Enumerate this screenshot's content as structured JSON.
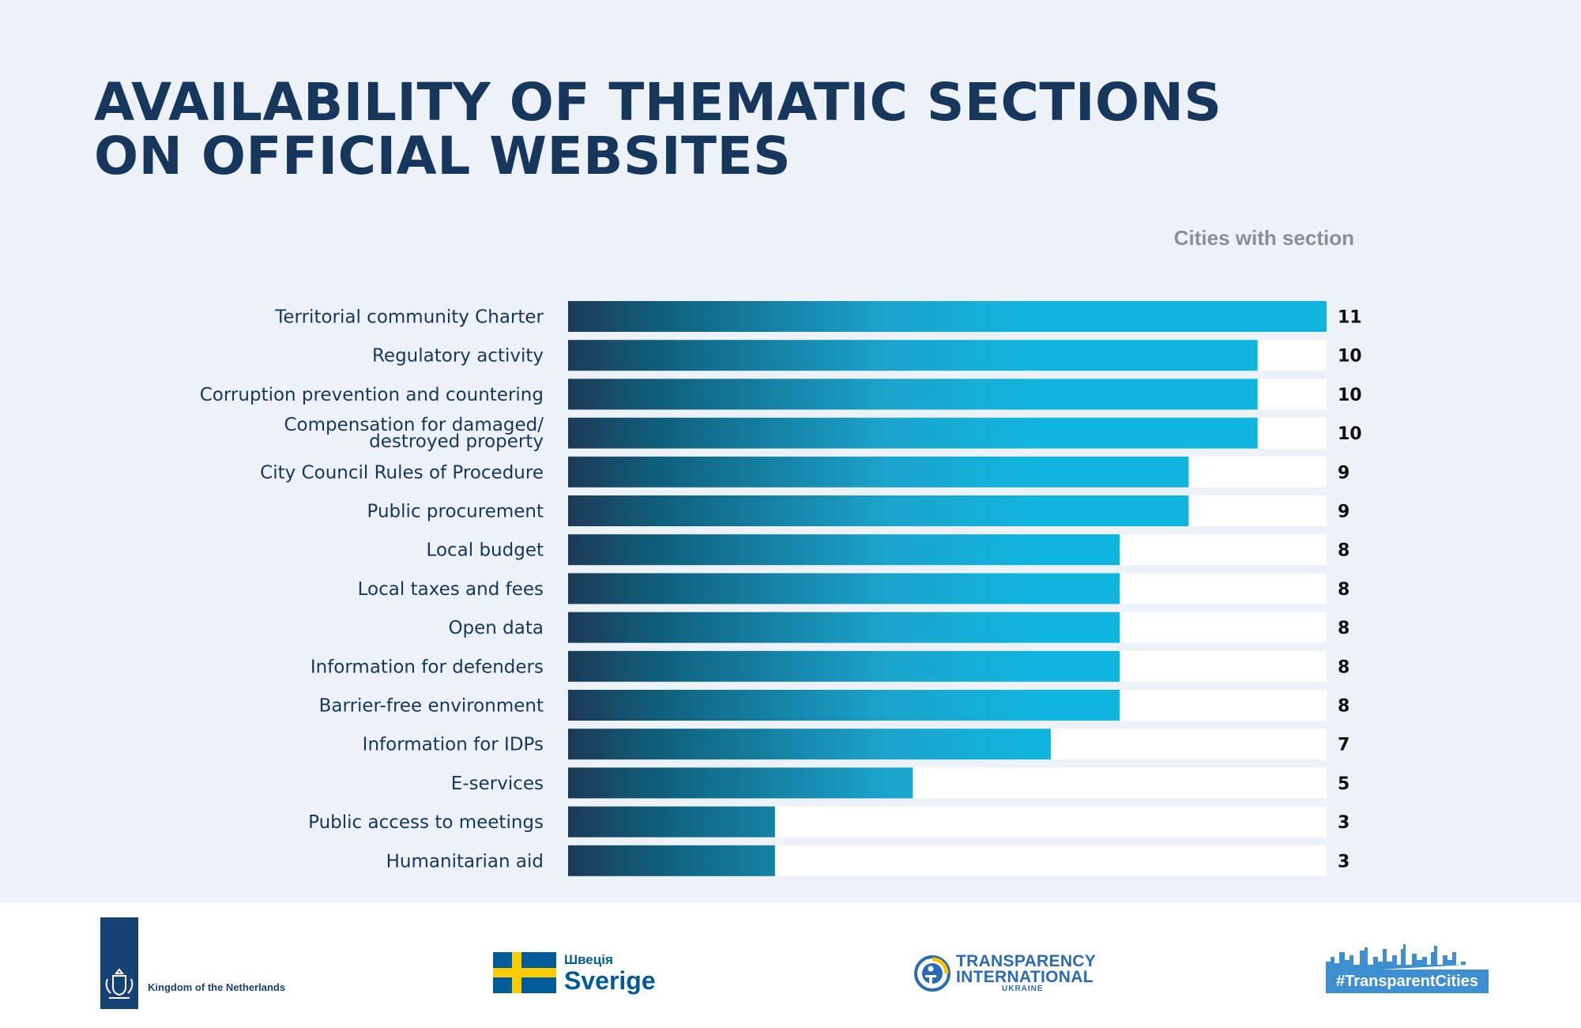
{
  "title_lines": [
    "AVAILABILITY OF THEMATIC SECTIONS",
    "ON OFFICIAL WEBSITES"
  ],
  "column_header": "Cities with section",
  "colors": {
    "title": "#16365c",
    "bar_start": "#1c3a57",
    "bar_end": "#0fb5de",
    "track": "#ffffff",
    "background": "#edf2f9"
  },
  "chart_data": {
    "type": "bar",
    "orientation": "horizontal",
    "categories": [
      "Territorial community Charter",
      "Regulatory activity",
      "Corruption prevention and countering",
      [
        "Compensation for damaged/",
        "destroyed property"
      ],
      "City Council Rules of Procedure",
      "Public procurement",
      "Local budget",
      "Local taxes and fees",
      "Open data",
      "Information for defenders",
      "Barrier-free environment",
      "Information for IDPs",
      "E-services",
      "Public access to meetings",
      "Humanitarian aid"
    ],
    "values": [
      11,
      10,
      10,
      10,
      9,
      9,
      8,
      8,
      8,
      8,
      8,
      7,
      5,
      3,
      3
    ],
    "xlim": [
      0,
      11
    ],
    "title": "AVAILABILITY OF THEMATIC SECTIONS ON OFFICIAL WEBSITES",
    "value_column_label": "Cities with section",
    "grid": false,
    "legend": "none"
  },
  "footer": {
    "netherlands": "Kingdom of the Netherlands",
    "sweden_small": "Швеція",
    "sweden_big": "Sverige",
    "ti_line1": "TRANSPARENCY",
    "ti_line2": "INTERNATIONAL",
    "ti_line3": "UKRAINE",
    "tc_hashtag": "#TransparentCities",
    "icons": [
      "netherlands-crest-icon",
      "swedish-flag-icon",
      "ti-globe-icon",
      "city-skyline-icon"
    ]
  }
}
